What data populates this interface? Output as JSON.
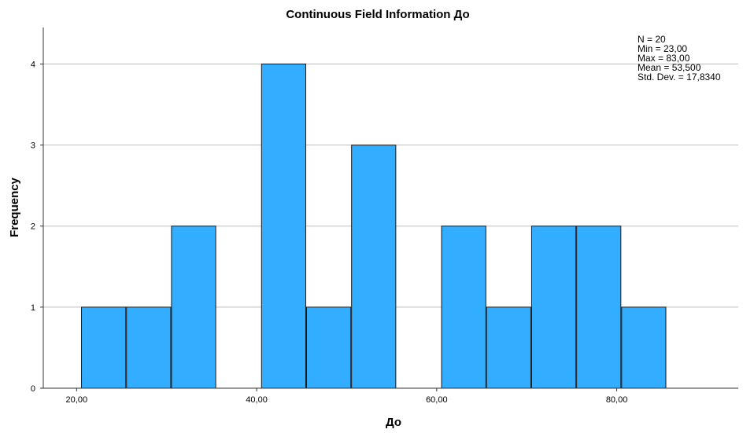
{
  "chart_data": {
    "type": "bar",
    "title": "Continuous Field Information До",
    "xlabel": "До",
    "ylabel": "Frequency",
    "bin_width": 5,
    "bins": [
      {
        "start": 20.5,
        "end": 25.5,
        "count": 1
      },
      {
        "start": 25.5,
        "end": 30.5,
        "count": 1
      },
      {
        "start": 30.5,
        "end": 35.5,
        "count": 2
      },
      {
        "start": 35.5,
        "end": 40.5,
        "count": 0
      },
      {
        "start": 40.5,
        "end": 45.5,
        "count": 4
      },
      {
        "start": 45.5,
        "end": 50.5,
        "count": 1
      },
      {
        "start": 50.5,
        "end": 55.5,
        "count": 3
      },
      {
        "start": 55.5,
        "end": 60.5,
        "count": 0
      },
      {
        "start": 60.5,
        "end": 65.5,
        "count": 2
      },
      {
        "start": 65.5,
        "end": 70.5,
        "count": 1
      },
      {
        "start": 70.5,
        "end": 75.5,
        "count": 2
      },
      {
        "start": 75.5,
        "end": 80.5,
        "count": 2
      },
      {
        "start": 80.5,
        "end": 85.5,
        "count": 1
      }
    ],
    "xlim": [
      16.3,
      93.5
    ],
    "ylim": [
      0,
      4.45
    ],
    "x_ticks": [
      {
        "value": 20,
        "label": "20,00"
      },
      {
        "value": 40,
        "label": "40,00"
      },
      {
        "value": 60,
        "label": "60,00"
      },
      {
        "value": 80,
        "label": "80,00"
      }
    ],
    "y_ticks": [
      {
        "value": 0,
        "label": "0"
      },
      {
        "value": 1,
        "label": "1"
      },
      {
        "value": 2,
        "label": "2"
      },
      {
        "value": 3,
        "label": "3"
      },
      {
        "value": 4,
        "label": "4"
      }
    ],
    "grid": "horizontal",
    "stats": [
      "N = 20",
      "Min = 23,00",
      "Max = 83,00",
      "Mean = 53,500",
      "Std. Dev. = 17,8340"
    ],
    "stats_position": "top-right",
    "colors": {
      "bar_fill": "#33adff",
      "bar_stroke": "#1a1a1a",
      "grid": "#bdbdbd",
      "axis": "#333333"
    }
  }
}
